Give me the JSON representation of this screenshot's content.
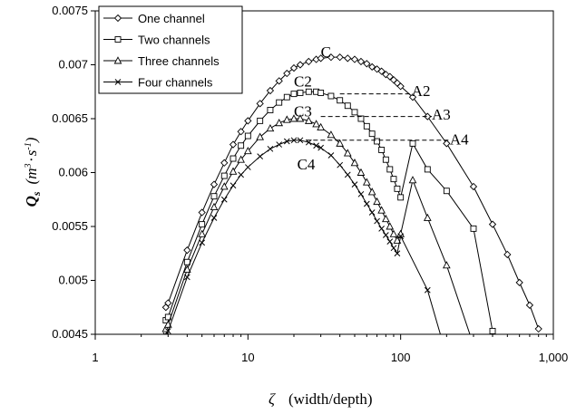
{
  "chart_data": {
    "type": "line",
    "xscale": "log",
    "xlim": [
      1,
      1000
    ],
    "ylim": [
      0.0045,
      0.0075
    ],
    "x_ticks": [
      "1",
      "10",
      "100",
      "1,000"
    ],
    "y_ticks": [
      "0.0045",
      "0.005",
      "0.0055",
      "0.006",
      "0.0065",
      "0.007",
      "0.0075"
    ],
    "y_tick_values": [
      0.0045,
      0.005,
      0.0055,
      0.006,
      0.0065,
      0.007,
      0.0075
    ],
    "xlabel": {
      "symbol": "ζ",
      "text": "(width/depth)"
    },
    "ylabel": {
      "symbol": "Q",
      "sub": "s",
      "unit_m": "m",
      "unit_m_exp": "3",
      "unit_s": "s",
      "unit_s_exp": "-1"
    },
    "legend": "top-left",
    "series": [
      {
        "name": "One channel",
        "marker": "diamond",
        "points": [
          [
            2.9,
            0.00475
          ],
          [
            3,
            0.00479
          ],
          [
            4,
            0.00528
          ],
          [
            5,
            0.00563
          ],
          [
            6,
            0.00589
          ],
          [
            7,
            0.00609
          ],
          [
            8,
            0.00626
          ],
          [
            9,
            0.00638
          ],
          [
            10,
            0.00648
          ],
          [
            12,
            0.00664
          ],
          [
            14,
            0.00676
          ],
          [
            16,
            0.00685
          ],
          [
            18,
            0.00692
          ],
          [
            20,
            0.00697
          ],
          [
            22,
            0.007
          ],
          [
            25,
            0.00703
          ],
          [
            28,
            0.00705
          ],
          [
            30,
            0.00706
          ],
          [
            35,
            0.00707
          ],
          [
            40,
            0.00707
          ],
          [
            45,
            0.00706
          ],
          [
            50,
            0.00705
          ],
          [
            55,
            0.00703
          ],
          [
            60,
            0.00701
          ],
          [
            65,
            0.00698
          ],
          [
            70,
            0.00696
          ],
          [
            75,
            0.00694
          ],
          [
            80,
            0.00691
          ],
          [
            85,
            0.00689
          ],
          [
            90,
            0.00686
          ],
          [
            95,
            0.00683
          ],
          [
            100,
            0.0068
          ],
          [
            120,
            0.0067
          ],
          [
            150,
            0.00652
          ],
          [
            200,
            0.00627
          ],
          [
            300,
            0.00587
          ],
          [
            400,
            0.00552
          ],
          [
            500,
            0.00524
          ],
          [
            600,
            0.00498
          ],
          [
            700,
            0.00477
          ],
          [
            800,
            0.00455
          ]
        ]
      },
      {
        "name": "Two channels",
        "marker": "square",
        "points": [
          [
            2.9,
            0.00463
          ],
          [
            3,
            0.00466
          ],
          [
            4,
            0.00517
          ],
          [
            5,
            0.00552
          ],
          [
            6,
            0.00578
          ],
          [
            7,
            0.00597
          ],
          [
            8,
            0.00613
          ],
          [
            9,
            0.00625
          ],
          [
            10,
            0.00634
          ],
          [
            12,
            0.00648
          ],
          [
            14,
            0.00658
          ],
          [
            16,
            0.00665
          ],
          [
            18,
            0.0067
          ],
          [
            20,
            0.00673
          ],
          [
            22,
            0.00674
          ],
          [
            25,
            0.00675
          ],
          [
            28,
            0.00675
          ],
          [
            30,
            0.00674
          ],
          [
            35,
            0.00671
          ],
          [
            40,
            0.00667
          ],
          [
            45,
            0.00662
          ],
          [
            50,
            0.00656
          ],
          [
            55,
            0.0065
          ],
          [
            60,
            0.00643
          ],
          [
            65,
            0.00636
          ],
          [
            70,
            0.00629
          ],
          [
            75,
            0.00621
          ],
          [
            80,
            0.00612
          ],
          [
            85,
            0.00603
          ],
          [
            90,
            0.00594
          ],
          [
            95,
            0.00585
          ],
          [
            100,
            0.00577
          ],
          [
            120,
            0.00627
          ],
          [
            150,
            0.00603
          ],
          [
            200,
            0.00583
          ],
          [
            300,
            0.00548
          ],
          [
            400,
            0.00453
          ]
        ]
      },
      {
        "name": "Three channels",
        "marker": "triangle",
        "points": [
          [
            2.9,
            0.00455
          ],
          [
            3,
            0.00459
          ],
          [
            4,
            0.0051
          ],
          [
            5,
            0.00543
          ],
          [
            6,
            0.00568
          ],
          [
            7,
            0.00587
          ],
          [
            8,
            0.00601
          ],
          [
            9,
            0.00612
          ],
          [
            10,
            0.0062
          ],
          [
            12,
            0.00633
          ],
          [
            14,
            0.00641
          ],
          [
            16,
            0.00646
          ],
          [
            18,
            0.00649
          ],
          [
            20,
            0.0065
          ],
          [
            22,
            0.0065
          ],
          [
            25,
            0.00648
          ],
          [
            28,
            0.00645
          ],
          [
            30,
            0.00642
          ],
          [
            35,
            0.00635
          ],
          [
            40,
            0.00627
          ],
          [
            45,
            0.00618
          ],
          [
            50,
            0.00609
          ],
          [
            55,
            0.006
          ],
          [
            60,
            0.00591
          ],
          [
            65,
            0.00582
          ],
          [
            70,
            0.00573
          ],
          [
            75,
            0.00565
          ],
          [
            80,
            0.00557
          ],
          [
            85,
            0.0055
          ],
          [
            90,
            0.00543
          ],
          [
            95,
            0.00537
          ],
          [
            100,
            0.00543
          ],
          [
            120,
            0.00593
          ],
          [
            150,
            0.00558
          ],
          [
            200,
            0.00514
          ],
          [
            300,
            0.0044
          ]
        ]
      },
      {
        "name": "Four channels",
        "marker": "x",
        "points": [
          [
            2.9,
            0.00449
          ],
          [
            3,
            0.00453
          ],
          [
            4,
            0.00503
          ],
          [
            5,
            0.00535
          ],
          [
            6,
            0.00558
          ],
          [
            7,
            0.00575
          ],
          [
            8,
            0.00588
          ],
          [
            9,
            0.00598
          ],
          [
            10,
            0.00605
          ],
          [
            12,
            0.00615
          ],
          [
            14,
            0.00622
          ],
          [
            16,
            0.00626
          ],
          [
            18,
            0.00629
          ],
          [
            20,
            0.0063
          ],
          [
            22,
            0.0063
          ],
          [
            25,
            0.00628
          ],
          [
            28,
            0.00625
          ],
          [
            30,
            0.00623
          ],
          [
            35,
            0.00616
          ],
          [
            40,
            0.00607
          ],
          [
            45,
            0.00598
          ],
          [
            50,
            0.00589
          ],
          [
            55,
            0.0058
          ],
          [
            60,
            0.00571
          ],
          [
            65,
            0.00563
          ],
          [
            70,
            0.00555
          ],
          [
            75,
            0.00548
          ],
          [
            80,
            0.00542
          ],
          [
            85,
            0.00536
          ],
          [
            90,
            0.0053
          ],
          [
            95,
            0.00525
          ],
          [
            100,
            0.00541
          ],
          [
            150,
            0.00491
          ],
          [
            200,
            0.0043
          ]
        ]
      }
    ],
    "annotations": [
      {
        "text": "C",
        "x": 30,
        "y": 0.00712
      },
      {
        "text": "C2",
        "x": 20,
        "y": 0.00685
      },
      {
        "text": "C3",
        "x": 20,
        "y": 0.00657
      },
      {
        "text": "C4",
        "x": 21,
        "y": 0.00608
      },
      {
        "text": "A2",
        "x": 118,
        "y": 0.00676
      },
      {
        "text": "A3",
        "x": 160,
        "y": 0.00654
      },
      {
        "text": "A4",
        "x": 210,
        "y": 0.00631
      }
    ],
    "dashed_lines": [
      {
        "x1": 40,
        "x2": 118,
        "y": 0.00673
      },
      {
        "x1": 30,
        "x2": 160,
        "y": 0.00652
      },
      {
        "x1": 24,
        "x2": 210,
        "y": 0.0063
      }
    ]
  }
}
